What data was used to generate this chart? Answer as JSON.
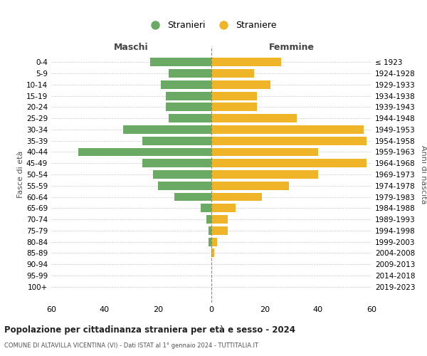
{
  "age_groups": [
    "0-4",
    "5-9",
    "10-14",
    "15-19",
    "20-24",
    "25-29",
    "30-34",
    "35-39",
    "40-44",
    "45-49",
    "50-54",
    "55-59",
    "60-64",
    "65-69",
    "70-74",
    "75-79",
    "80-84",
    "85-89",
    "90-94",
    "95-99",
    "100+"
  ],
  "birth_years": [
    "2019-2023",
    "2014-2018",
    "2009-2013",
    "2004-2008",
    "1999-2003",
    "1994-1998",
    "1989-1993",
    "1984-1988",
    "1979-1983",
    "1974-1978",
    "1969-1973",
    "1964-1968",
    "1959-1963",
    "1954-1958",
    "1949-1953",
    "1944-1948",
    "1939-1943",
    "1934-1938",
    "1929-1933",
    "1924-1928",
    "≤ 1923"
  ],
  "maschi": [
    23,
    16,
    19,
    17,
    17,
    16,
    33,
    26,
    50,
    26,
    22,
    20,
    14,
    4,
    2,
    1,
    1,
    0,
    0,
    0,
    0
  ],
  "femmine": [
    26,
    16,
    22,
    17,
    17,
    32,
    57,
    58,
    40,
    58,
    40,
    29,
    19,
    9,
    6,
    6,
    2,
    1,
    0,
    0,
    0
  ],
  "color_maschi": "#6aaa64",
  "color_femmine": "#f0b429",
  "title": "Popolazione per cittadinanza straniera per età e sesso - 2024",
  "subtitle": "COMUNE DI ALTAVILLA VICENTINA (VI) - Dati ISTAT al 1° gennaio 2024 - TUTTITALIA.IT",
  "xlabel_left": "Maschi",
  "xlabel_right": "Femmine",
  "ylabel_left": "Fasce di età",
  "ylabel_right": "Anni di nascita",
  "legend_maschi": "Stranieri",
  "legend_femmine": "Straniere",
  "xlim": 60,
  "background_color": "#ffffff"
}
